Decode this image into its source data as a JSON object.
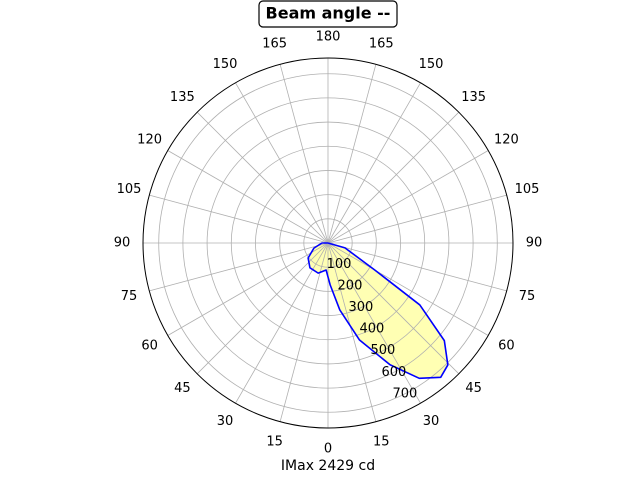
{
  "chart_data": {
    "type": "polar",
    "title": "Beam angle --",
    "xlabel": "IMax 2429 cd",
    "rlim": [
      0,
      765
    ],
    "rticks": [
      100,
      200,
      300,
      400,
      500,
      600,
      700
    ],
    "thetaticks": [
      0,
      15,
      30,
      45,
      60,
      75,
      90,
      105,
      120,
      135,
      150,
      165,
      180,
      {
        "value": -165,
        "label": "165"
      },
      {
        "value": -150,
        "label": "150"
      },
      {
        "value": -135,
        "label": "135"
      },
      {
        "value": -120,
        "label": "120"
      },
      {
        "value": -105,
        "label": "105"
      },
      {
        "value": -90,
        "label": "90"
      },
      {
        "value": -75,
        "label": "75"
      },
      {
        "value": -60,
        "label": "60"
      },
      {
        "value": -45,
        "label": "45"
      },
      {
        "value": -30,
        "label": "30"
      },
      {
        "value": -15,
        "label": "15"
      }
    ],
    "grid": true,
    "series": [
      {
        "color": "#0000ff",
        "fill": "#ffffb3",
        "theta": [
          90,
          74,
          60,
          56,
          50,
          44.5,
          40,
          34,
          27,
          18,
          10,
          3,
          -4,
          -18,
          -36,
          -53,
          -70,
          -90,
          90
        ],
        "r": [
          0,
          73,
          224,
          458,
          628,
          707,
          725,
          675,
          565,
          422,
          281,
          174,
          112,
          131,
          127,
          103,
          62,
          25,
          0
        ]
      }
    ]
  }
}
